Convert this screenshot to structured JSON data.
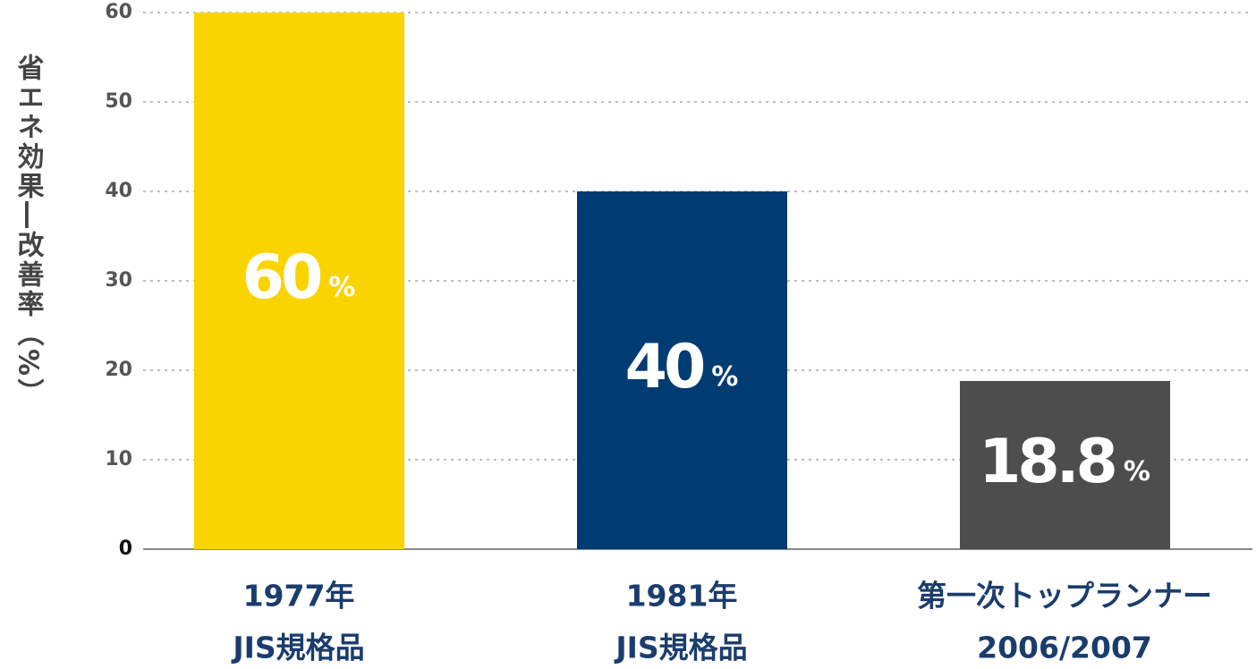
{
  "chart_data": {
    "type": "bar",
    "y_label": "省エネ効果―改善率（%）",
    "categories": [
      [
        "1977年",
        "JIS規格品"
      ],
      [
        "1981年",
        "JIS規格品"
      ],
      [
        "第一次トップランナー",
        "2006/2007"
      ]
    ],
    "values": [
      60,
      40,
      18.8
    ],
    "value_labels": [
      "60%",
      "40%",
      "18.8%"
    ],
    "colors": [
      "#f9d400",
      "#003c71",
      "#4d4d4d"
    ],
    "ylim": [
      0,
      60
    ],
    "yticks": [
      0,
      10,
      20,
      30,
      40,
      50,
      60
    ],
    "grid": true
  }
}
